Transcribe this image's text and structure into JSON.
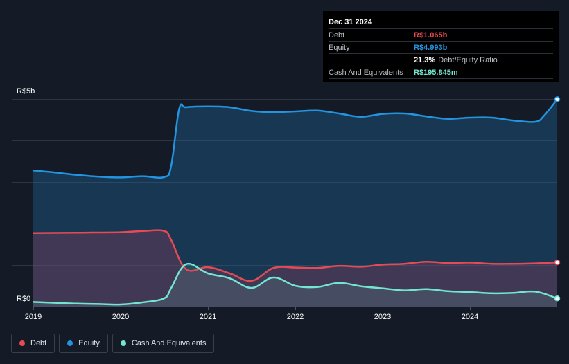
{
  "colors": {
    "background": "#151b26",
    "debt": "#e64b55",
    "equity": "#2394df",
    "cash": "#73e6d2",
    "grid": "#2e3542",
    "axis_text": "#ffffff"
  },
  "tooltip": {
    "date": "Dec 31 2024",
    "rows": [
      {
        "label": "Debt",
        "value": "R$1.065b",
        "color": "#e64b55"
      },
      {
        "label": "Equity",
        "value": "R$4.993b",
        "color": "#2394df"
      },
      {
        "label": "",
        "value": "21.3%",
        "sub": "Debt/Equity Ratio",
        "color": "#ffffff"
      },
      {
        "label": "Cash And Equivalents",
        "value": "R$195.845m",
        "color": "#73e6d2"
      }
    ]
  },
  "legend": [
    {
      "label": "Debt",
      "color": "#e64b55"
    },
    {
      "label": "Equity",
      "color": "#2394df"
    },
    {
      "label": "Cash And Equivalents",
      "color": "#73e6d2"
    }
  ],
  "chart_data": {
    "type": "area",
    "title": "",
    "xlabel": "",
    "ylabel": "",
    "y_unit": "R$ billions",
    "ylim": [
      0,
      5
    ],
    "y_ticks": [
      {
        "value": 5,
        "label": "R$5b"
      },
      {
        "value": 0,
        "label": "R$0"
      }
    ],
    "xlim": [
      2019,
      2025
    ],
    "x_ticks": [
      {
        "value": 2019,
        "label": "2019"
      },
      {
        "value": 2020,
        "label": "2020"
      },
      {
        "value": 2021,
        "label": "2021"
      },
      {
        "value": 2022,
        "label": "2022"
      },
      {
        "value": 2023,
        "label": "2023"
      },
      {
        "value": 2024,
        "label": "2024"
      }
    ],
    "grid": true,
    "legend_position": "bottom-left",
    "series": [
      {
        "name": "Equity",
        "color": "#2394df",
        "points": [
          [
            2019.0,
            3.28
          ],
          [
            2019.25,
            3.23
          ],
          [
            2019.5,
            3.17
          ],
          [
            2019.75,
            3.13
          ],
          [
            2020.0,
            3.11
          ],
          [
            2020.25,
            3.14
          ],
          [
            2020.5,
            3.12
          ],
          [
            2020.58,
            3.4
          ],
          [
            2020.67,
            4.75
          ],
          [
            2020.75,
            4.8
          ],
          [
            2021.0,
            4.82
          ],
          [
            2021.25,
            4.8
          ],
          [
            2021.5,
            4.71
          ],
          [
            2021.75,
            4.68
          ],
          [
            2022.0,
            4.7
          ],
          [
            2022.25,
            4.72
          ],
          [
            2022.5,
            4.65
          ],
          [
            2022.75,
            4.57
          ],
          [
            2023.0,
            4.64
          ],
          [
            2023.25,
            4.65
          ],
          [
            2023.5,
            4.58
          ],
          [
            2023.75,
            4.52
          ],
          [
            2024.0,
            4.55
          ],
          [
            2024.25,
            4.55
          ],
          [
            2024.5,
            4.48
          ],
          [
            2024.75,
            4.45
          ],
          [
            2024.85,
            4.6
          ],
          [
            2025.0,
            4.993
          ]
        ]
      },
      {
        "name": "Debt",
        "color": "#e64b55",
        "points": [
          [
            2019.0,
            1.77
          ],
          [
            2019.5,
            1.78
          ],
          [
            2020.0,
            1.79
          ],
          [
            2020.25,
            1.82
          ],
          [
            2020.5,
            1.82
          ],
          [
            2020.58,
            1.6
          ],
          [
            2020.75,
            0.9
          ],
          [
            2021.0,
            0.95
          ],
          [
            2021.25,
            0.8
          ],
          [
            2021.5,
            0.62
          ],
          [
            2021.75,
            0.93
          ],
          [
            2022.0,
            0.94
          ],
          [
            2022.25,
            0.93
          ],
          [
            2022.5,
            0.98
          ],
          [
            2022.75,
            0.96
          ],
          [
            2023.0,
            1.01
          ],
          [
            2023.25,
            1.03
          ],
          [
            2023.5,
            1.08
          ],
          [
            2023.75,
            1.05
          ],
          [
            2024.0,
            1.06
          ],
          [
            2024.25,
            1.03
          ],
          [
            2024.5,
            1.03
          ],
          [
            2024.75,
            1.04
          ],
          [
            2025.0,
            1.065
          ]
        ]
      },
      {
        "name": "Cash And Equivalents",
        "color": "#73e6d2",
        "points": [
          [
            2019.0,
            0.11
          ],
          [
            2019.25,
            0.09
          ],
          [
            2019.5,
            0.07
          ],
          [
            2019.75,
            0.06
          ],
          [
            2020.0,
            0.05
          ],
          [
            2020.25,
            0.1
          ],
          [
            2020.5,
            0.2
          ],
          [
            2020.58,
            0.45
          ],
          [
            2020.75,
            1.02
          ],
          [
            2021.0,
            0.8
          ],
          [
            2021.25,
            0.68
          ],
          [
            2021.5,
            0.45
          ],
          [
            2021.75,
            0.7
          ],
          [
            2022.0,
            0.5
          ],
          [
            2022.25,
            0.47
          ],
          [
            2022.5,
            0.57
          ],
          [
            2022.75,
            0.49
          ],
          [
            2023.0,
            0.44
          ],
          [
            2023.25,
            0.39
          ],
          [
            2023.5,
            0.42
          ],
          [
            2023.75,
            0.37
          ],
          [
            2024.0,
            0.35
          ],
          [
            2024.25,
            0.32
          ],
          [
            2024.5,
            0.33
          ],
          [
            2024.75,
            0.36
          ],
          [
            2025.0,
            0.196
          ]
        ]
      }
    ]
  }
}
